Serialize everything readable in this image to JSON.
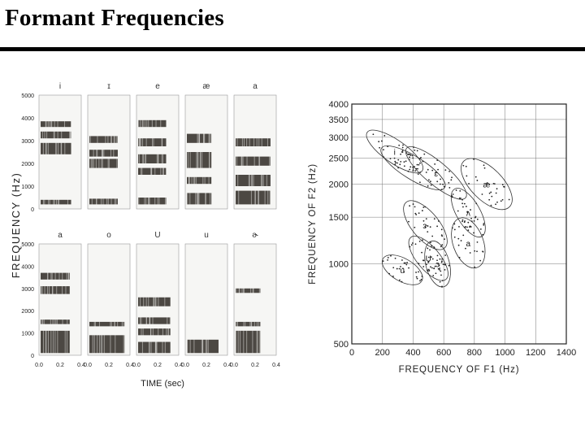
{
  "slide": {
    "title": "Formant Frequencies"
  },
  "spectrograms": {
    "y_axis_label": "FREQUENCY (Hz)",
    "x_axis_label": "TIME (sec)",
    "y_ticks": [
      "0",
      "1000",
      "2000",
      "3000",
      "4000",
      "5000"
    ],
    "x_ticks": [
      "0.0",
      "0.2",
      "0.4"
    ],
    "row1_vowels": [
      "i",
      "ɪ",
      "e",
      "æ",
      "a"
    ],
    "row2_vowels": [
      "a",
      "o",
      "U",
      "u",
      "ɚ"
    ]
  },
  "chart_data": {
    "type": "scatter",
    "xlabel": "FREQUENCY OF F1 (Hz)",
    "ylabel": "FREQUENCY OF F2 (Hz)",
    "xlim": [
      0,
      1400
    ],
    "ylim": [
      500,
      4000
    ],
    "x_ticks": [
      0,
      200,
      400,
      600,
      800,
      1000,
      1200,
      1400
    ],
    "y_ticks": [
      500,
      1000,
      1500,
      2000,
      2500,
      3000,
      3500,
      4000
    ],
    "y_scale": "log",
    "grid": true,
    "vowel_regions": [
      {
        "label": "i",
        "f1": 280,
        "f2": 2650
      },
      {
        "label": "ɪ",
        "f1": 400,
        "f2": 2300
      },
      {
        "label": "ɛ",
        "f1": 550,
        "f2": 2200
      },
      {
        "label": "æ",
        "f1": 880,
        "f2": 2000
      },
      {
        "label": "ʌ",
        "f1": 760,
        "f2": 1560
      },
      {
        "label": "a",
        "f1": 760,
        "f2": 1200
      },
      {
        "label": "ɔ",
        "f1": 560,
        "f2": 1000
      },
      {
        "label": "U",
        "f1": 500,
        "f2": 1050
      },
      {
        "label": "u",
        "f1": 330,
        "f2": 950
      },
      {
        "label": "ɝ",
        "f1": 480,
        "f2": 1400
      }
    ]
  },
  "colors": {
    "spectrogram_ink": "#3a3530",
    "frame": "#222222",
    "grid": "#777777"
  }
}
